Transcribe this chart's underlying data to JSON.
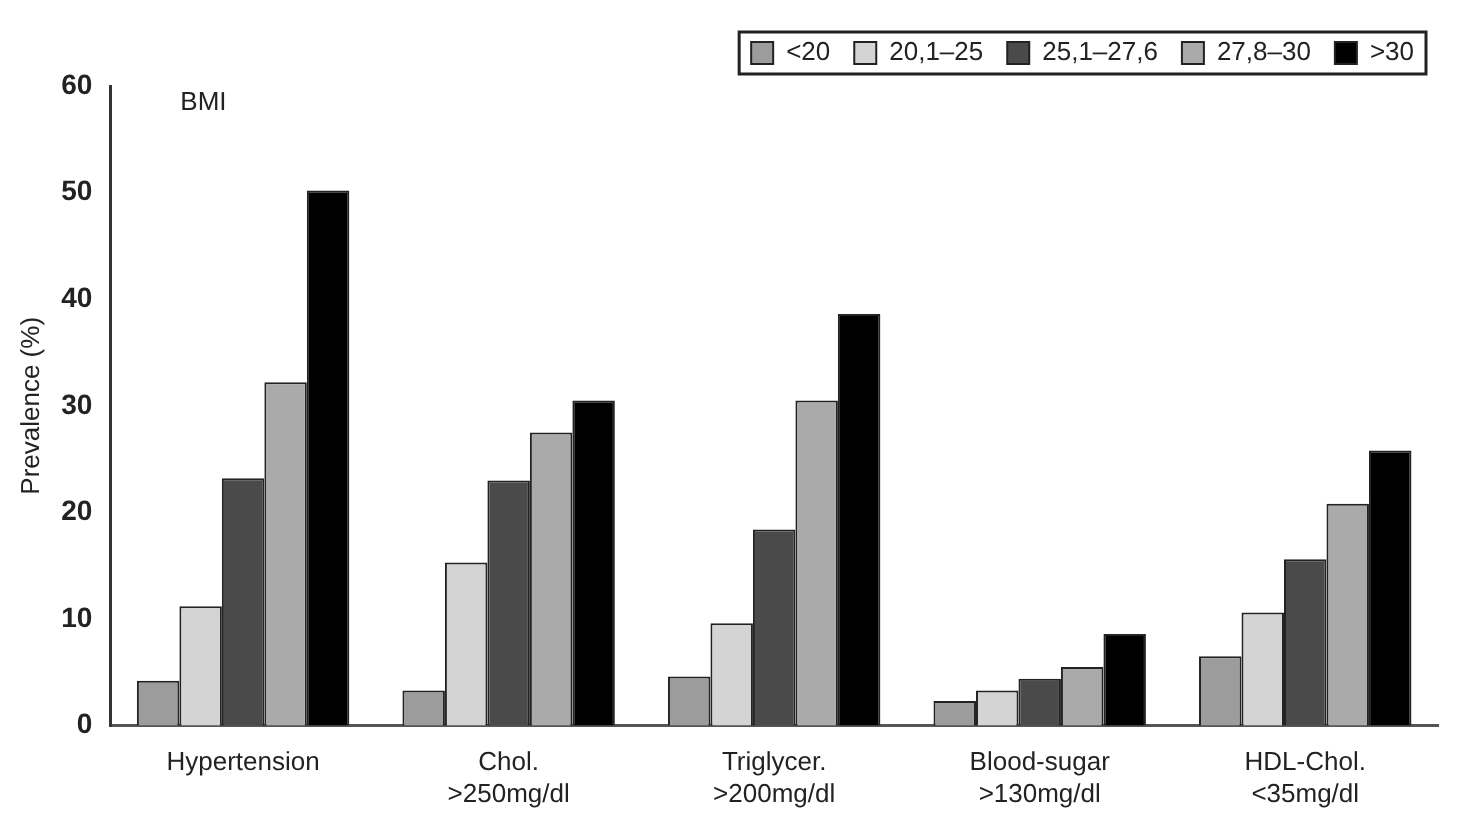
{
  "chart_data": {
    "type": "bar",
    "ylabel": "Prevalence (%)",
    "legend_title": "BMI",
    "categories": [
      "Hypertension",
      "Chol.\n>250mg/dl",
      "Triglycer.\n>200mg/dl",
      "Blood-sugar\n>130mg/dl",
      "HDL-Chol.\n<35mg/dl"
    ],
    "series": [
      {
        "name": "<20",
        "color": "#9c9c9c",
        "values": [
          4.2,
          3.3,
          4.6,
          2.3,
          6.5
        ]
      },
      {
        "name": "20,1–25",
        "color": "#d4d4d4",
        "values": [
          11.2,
          15.3,
          9.6,
          3.3,
          10.6
        ]
      },
      {
        "name": "25,1–27,6",
        "color": "#4a4a4a",
        "values": [
          23.2,
          23,
          18.4,
          4.4,
          15.6
        ]
      },
      {
        "name": "27,8–30",
        "color": "#aaaaaa",
        "values": [
          32.2,
          27.5,
          30.5,
          5.5,
          20.8
        ]
      },
      {
        "name": ">30",
        "color": "#000000",
        "values": [
          50.2,
          30.5,
          38.6,
          8.6,
          25.8
        ]
      }
    ],
    "ylim": [
      0,
      60
    ],
    "yticks": [
      0,
      10,
      20,
      30,
      40,
      50,
      60
    ],
    "grid": false,
    "legend": "top right"
  }
}
